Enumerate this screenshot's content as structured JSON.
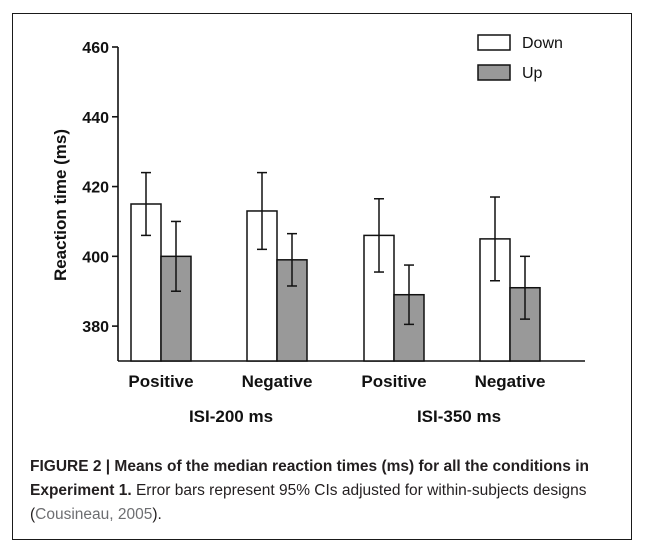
{
  "chart_data": {
    "type": "bar",
    "ylabel": "Reaction time (ms)",
    "ylim": [
      370,
      460
    ],
    "yticks": [
      380,
      400,
      420,
      440,
      460
    ],
    "groups": [
      {
        "label": "ISI-200 ms",
        "categories": [
          "Positive",
          "Negative"
        ]
      },
      {
        "label": "ISI-350 ms",
        "categories": [
          "Positive",
          "Negative"
        ]
      }
    ],
    "categories": [
      "Positive",
      "Negative",
      "Positive",
      "Negative"
    ],
    "series": [
      {
        "name": "Down",
        "color": "#ffffff",
        "values": [
          415,
          413,
          406,
          405
        ],
        "err_low": [
          406,
          402,
          395.5,
          393
        ],
        "err_high": [
          424,
          424,
          416.5,
          417
        ]
      },
      {
        "name": "Up",
        "color": "#999999",
        "values": [
          400,
          399,
          389,
          391
        ],
        "err_low": [
          390,
          391.5,
          380.5,
          382
        ],
        "err_high": [
          410,
          406.5,
          397.5,
          400
        ]
      }
    ],
    "legend_position": "top-right",
    "grid": false
  },
  "caption": {
    "figure_label": "FIGURE 2 | Means of the median reaction times (ms) for all the conditions in Experiment 1.",
    "text": " Error bars represent 95% CIs adjusted for within-subjects designs (",
    "reference": "Cousineau, 2005",
    "closing": ")."
  }
}
